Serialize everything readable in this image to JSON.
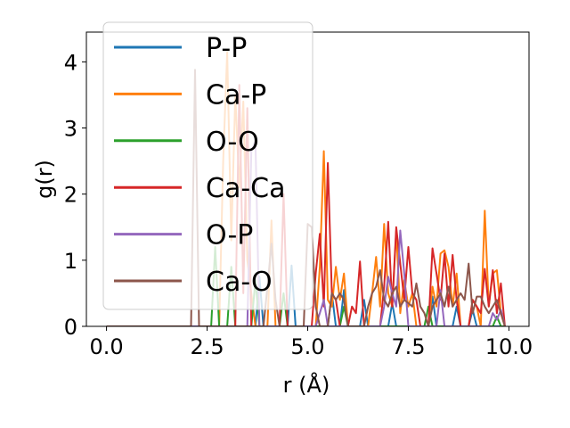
{
  "chart_data": {
    "type": "line",
    "xlabel": "r (Å)",
    "ylabel": "g(r)",
    "xlim": [
      -0.5,
      10.5
    ],
    "ylim": [
      0,
      4.45
    ],
    "xticks": [
      0.0,
      2.5,
      5.0,
      7.5,
      10.0
    ],
    "xtick_labels": [
      "0.0",
      "2.5",
      "5.0",
      "7.5",
      "10.0"
    ],
    "yticks": [
      0,
      1,
      2,
      3,
      4
    ],
    "ytick_labels": [
      "0",
      "1",
      "2",
      "3",
      "4"
    ],
    "grid": false,
    "legend_position": "upper-left",
    "series": [
      {
        "name": "P-P",
        "color": "#1f77b4",
        "x": [
          0,
          3.7,
          3.8,
          3.9,
          4.0,
          4.5,
          4.6,
          4.7,
          4.8,
          4.9,
          5.0,
          5.5,
          5.6,
          5.7,
          5.8,
          5.9,
          6.0,
          6.3,
          6.4,
          6.5,
          7.0,
          7.1,
          7.2,
          8.0,
          8.1,
          8.2,
          8.6,
          8.7,
          8.8,
          9.0,
          9.1,
          9.2,
          9.9
        ],
        "y": [
          0,
          0,
          0.75,
          0,
          0,
          0,
          0.92,
          0,
          0,
          0,
          0,
          0,
          0.5,
          0,
          0,
          0.55,
          0,
          0,
          0.4,
          0,
          0,
          0.35,
          0,
          0,
          0.45,
          0,
          0,
          0.3,
          0,
          0,
          0.25,
          0,
          0
        ]
      },
      {
        "name": "Ca-P",
        "color": "#ff7f0e",
        "x": [
          0,
          2.8,
          2.9,
          3.0,
          3.1,
          3.2,
          3.3,
          3.4,
          3.5,
          3.6,
          3.7,
          4.0,
          4.1,
          4.2,
          5.2,
          5.3,
          5.4,
          5.5,
          5.6,
          5.7,
          5.8,
          5.9,
          6.0,
          6.5,
          6.6,
          6.7,
          6.8,
          6.9,
          7.0,
          7.1,
          7.2,
          7.3,
          7.4,
          7.5,
          7.6,
          7.7,
          8.0,
          8.1,
          8.2,
          8.3,
          8.4,
          8.5,
          8.6,
          8.7,
          8.8,
          9.0,
          9.1,
          9.2,
          9.3,
          9.4,
          9.5,
          9.6,
          9.7,
          9.8,
          9.9
        ],
        "y": [
          0,
          0,
          2.5,
          4.15,
          1.3,
          3.5,
          2.1,
          3.4,
          1.0,
          0.5,
          0,
          0,
          1.6,
          0,
          0,
          0.9,
          2.65,
          0.4,
          0.3,
          0.9,
          0.4,
          0.8,
          0,
          0,
          0.5,
          1.05,
          0.3,
          1.55,
          0.5,
          0.3,
          1.45,
          0.2,
          0.7,
          0.3,
          0.5,
          0,
          0,
          0.6,
          0.3,
          1.1,
          1.15,
          0.9,
          0.3,
          0.8,
          0,
          0,
          0.4,
          0.3,
          0,
          1.75,
          0.3,
          0.8,
          0.85,
          0.2,
          0
        ]
      },
      {
        "name": "O-O",
        "color": "#2ca02c",
        "x": [
          0,
          2.6,
          2.7,
          2.8,
          3.0,
          3.1,
          3.2,
          3.6,
          3.7,
          3.8,
          4.3,
          4.4,
          4.5,
          5.8,
          5.9,
          6.0,
          7.9,
          8.0,
          8.1,
          9.6,
          9.7,
          9.8,
          9.9
        ],
        "y": [
          0,
          0,
          1.2,
          0,
          0,
          0.9,
          0,
          0,
          0.7,
          0,
          0,
          0.5,
          0,
          0,
          0.3,
          0,
          0,
          0.3,
          0,
          0,
          0.15,
          0,
          0
        ]
      },
      {
        "name": "Ca-Ca",
        "color": "#d62728",
        "x": [
          0,
          3.2,
          3.3,
          3.4,
          3.5,
          3.6,
          4.3,
          4.4,
          4.5,
          5.1,
          5.2,
          5.3,
          5.4,
          5.5,
          5.6,
          5.7,
          5.8,
          6.0,
          6.1,
          6.2,
          6.3,
          6.4,
          6.8,
          6.9,
          7.0,
          7.1,
          7.2,
          7.4,
          7.5,
          7.6,
          7.7,
          7.8,
          8.0,
          8.1,
          8.2,
          8.3,
          8.4,
          8.5,
          8.6,
          8.7,
          8.8,
          9.0,
          9.1,
          9.2,
          9.3,
          9.4,
          9.5,
          9.6,
          9.7,
          9.8,
          9.9
        ],
        "y": [
          0,
          0,
          3.65,
          0.5,
          3.3,
          0,
          0,
          2.0,
          0,
          0,
          0.8,
          1.4,
          0.3,
          2.47,
          0.5,
          0.4,
          0,
          0,
          0.3,
          0.2,
          0.98,
          0,
          0,
          0.6,
          1.58,
          0.3,
          1.5,
          0.4,
          1.2,
          0.5,
          0.4,
          0,
          0,
          1.18,
          0.8,
          0.4,
          1.1,
          0.3,
          1.08,
          0.4,
          0,
          0,
          0.4,
          0.3,
          0.2,
          0.87,
          0.3,
          0.85,
          0.2,
          0.65,
          0
        ]
      },
      {
        "name": "O-P",
        "color": "#9467bd",
        "x": [
          0,
          3.5,
          3.6,
          3.7,
          3.8,
          5.2,
          5.3,
          5.4,
          5.5,
          6.8,
          6.9,
          7.0,
          7.1,
          7.2,
          7.3,
          7.4,
          7.5,
          8.2,
          8.3,
          8.4,
          9.5,
          9.6,
          9.7,
          9.8,
          9.9
        ],
        "y": [
          0,
          0,
          2.65,
          2.8,
          0,
          0,
          0.2,
          0.4,
          0,
          0,
          0.3,
          0.75,
          0.5,
          0.3,
          1.45,
          0.8,
          0,
          0,
          0.55,
          0,
          0,
          0.2,
          0.1,
          0.25,
          0
        ]
      },
      {
        "name": "Ca-O",
        "color": "#8c564b",
        "x": [
          0,
          2.1,
          2.2,
          2.3,
          2.4,
          3.9,
          4.0,
          4.1,
          4.2,
          4.3,
          4.9,
          5.0,
          5.1,
          5.2,
          5.3,
          5.5,
          5.6,
          5.7,
          5.8,
          5.9,
          6.0,
          6.4,
          6.5,
          6.6,
          6.7,
          6.8,
          6.9,
          7.0,
          7.1,
          7.2,
          7.3,
          7.4,
          7.5,
          7.6,
          7.7,
          7.8,
          7.9,
          8.0,
          8.1,
          8.2,
          8.3,
          8.4,
          8.5,
          8.6,
          8.7,
          8.8,
          8.9,
          9.0,
          9.1,
          9.2,
          9.3,
          9.4,
          9.5,
          9.6,
          9.7,
          9.8,
          9.9
        ],
        "y": [
          0,
          0,
          3.88,
          0,
          0,
          0,
          0.6,
          1.25,
          0.4,
          0,
          0,
          1.55,
          1.5,
          0.3,
          0,
          0,
          0.5,
          0.4,
          0.5,
          0.4,
          0,
          0,
          0.3,
          0.5,
          0.6,
          0.85,
          0.4,
          0.3,
          0.5,
          0.6,
          0.3,
          0.4,
          0.35,
          0.3,
          0.65,
          0.3,
          0.2,
          0,
          0.3,
          0.4,
          0.5,
          0.3,
          0.6,
          0.3,
          0.4,
          0.5,
          0.4,
          0.95,
          0.2,
          0.45,
          0.45,
          0.3,
          0.2,
          0.3,
          0.4,
          0.2,
          0
        ]
      }
    ]
  }
}
